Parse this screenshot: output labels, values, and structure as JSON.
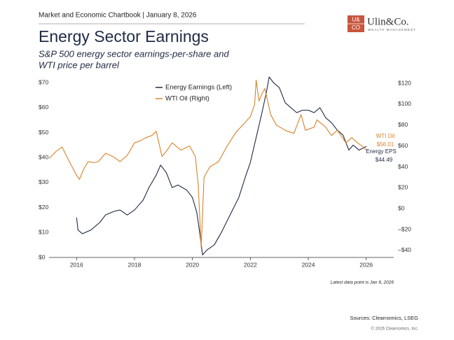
{
  "header": {
    "chartbook": "Market and Economic Chartbook | January 8, 2026",
    "logo_mark_top": "U&",
    "logo_mark_bottom": "CO",
    "logo_name": "Ulin&Co.",
    "logo_tagline": "WEALTH MANAGEMENT"
  },
  "chart_data": {
    "type": "line",
    "title": "Energy Sector Earnings",
    "subtitle": [
      "S&P 500 energy sector earnings-per-share and",
      "WTI price per barrel"
    ],
    "xlim": [
      2015.05,
      2026.95
    ],
    "xticks": [
      2016,
      2018,
      2020,
      2022,
      2024,
      2026
    ],
    "ylim": [
      0,
      73.7
    ],
    "yticks": [
      {
        "value": 0,
        "label": "$0"
      },
      {
        "value": 10,
        "label": "$10"
      },
      {
        "value": 20,
        "label": "$20"
      },
      {
        "value": 30,
        "label": "$30"
      },
      {
        "value": 40,
        "label": "$40"
      },
      {
        "value": 50,
        "label": "$50"
      },
      {
        "value": 60,
        "label": "$60"
      },
      {
        "value": 70,
        "label": "$70"
      }
    ],
    "y2lim": [
      -46.7,
      129.4
    ],
    "y2ticks": [
      {
        "value": -40,
        "label": "–$40"
      },
      {
        "value": -20,
        "label": "–$20"
      },
      {
        "value": 0,
        "label": "$0"
      },
      {
        "value": 20,
        "label": "$20"
      },
      {
        "value": 40,
        "label": "$40"
      },
      {
        "value": 60,
        "label": "$60"
      },
      {
        "value": 80,
        "label": "$80"
      },
      {
        "value": 100,
        "label": "$100"
      },
      {
        "value": 120,
        "label": "$120"
      }
    ],
    "grid": false,
    "legend": "top-center",
    "series": [
      {
        "name": "Energy Earnings (Left)",
        "color": "#1f2a44",
        "axis": "y",
        "x": [
          2016.0,
          2016.05,
          2016.2,
          2016.5,
          2016.8,
          2017.0,
          2017.3,
          2017.5,
          2017.75,
          2018.0,
          2018.3,
          2018.5,
          2018.75,
          2018.9,
          2019.1,
          2019.3,
          2019.5,
          2019.8,
          2020.0,
          2020.15,
          2020.25,
          2020.35,
          2020.5,
          2020.75,
          2021.0,
          2021.3,
          2021.6,
          2021.85,
          2022.0,
          2022.2,
          2022.4,
          2022.55,
          2022.65,
          2022.8,
          2023.0,
          2023.2,
          2023.4,
          2023.6,
          2023.8,
          2024.0,
          2024.2,
          2024.4,
          2024.6,
          2024.8,
          2025.0,
          2025.2,
          2025.4,
          2025.55,
          2025.75,
          2026.01
        ],
        "values": [
          16,
          11,
          9.5,
          11,
          14,
          17,
          18.5,
          19,
          17,
          19,
          23,
          28,
          33,
          37,
          34,
          28,
          29,
          27,
          24,
          18,
          10,
          1,
          3,
          5,
          10,
          17,
          24,
          33,
          38,
          48,
          58,
          66,
          72.3,
          70,
          68,
          62,
          60,
          58,
          59,
          59,
          58,
          60,
          56,
          54,
          51,
          49,
          43,
          45,
          43,
          44.49
        ]
      },
      {
        "name": "WTI Oil (Right)",
        "color": "#d9822b",
        "axis": "y2",
        "x": [
          2015.05,
          2015.3,
          2015.5,
          2015.75,
          2016.0,
          2016.1,
          2016.25,
          2016.4,
          2016.6,
          2016.75,
          2017.0,
          2017.25,
          2017.5,
          2017.75,
          2018.0,
          2018.2,
          2018.4,
          2018.6,
          2018.75,
          2018.95,
          2019.1,
          2019.3,
          2019.6,
          2019.9,
          2020.1,
          2020.2,
          2020.3,
          2020.4,
          2020.6,
          2020.9,
          2021.2,
          2021.5,
          2021.8,
          2022.0,
          2022.15,
          2022.2,
          2022.3,
          2022.4,
          2022.5,
          2022.7,
          2022.9,
          2023.2,
          2023.5,
          2023.75,
          2023.9,
          2024.2,
          2024.3,
          2024.6,
          2024.8,
          2025.0,
          2025.3,
          2025.5,
          2025.7,
          2025.9,
          2026.01
        ],
        "values": [
          48,
          55,
          59,
          45,
          32,
          28,
          38,
          45,
          44,
          45,
          53,
          50,
          45,
          51,
          63,
          65,
          68,
          70,
          74,
          50,
          55,
          63,
          56,
          60,
          50,
          23,
          -37,
          30,
          40,
          45,
          60,
          73,
          82,
          88,
          100,
          123,
          103,
          110,
          115,
          90,
          80,
          75,
          72,
          90,
          75,
          78,
          85,
          78,
          70,
          75,
          63,
          68,
          63,
          59,
          56.01
        ]
      }
    ],
    "annotations": [
      {
        "text": "WTI Oil",
        "color": "#d9822b"
      },
      {
        "text": "$56.01",
        "color": "#d9822b"
      },
      {
        "text": "Energy EPS",
        "color": "#1f2a44"
      },
      {
        "text": "$44.49",
        "color": "#1f2a44"
      }
    ],
    "note": "Latest data point is Jan 6, 2026"
  },
  "footer": {
    "sources": "Sources: Clearnomics, LSEG",
    "copyright": "© 2026 Clearnomics, Inc."
  }
}
